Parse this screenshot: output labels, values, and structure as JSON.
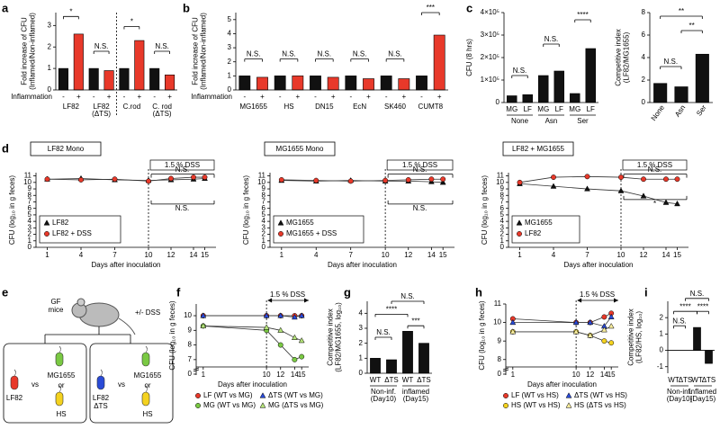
{
  "chart_data": [
    {
      "type": "bar",
      "panel": "a",
      "ylabel": [
        "Fold increase of CFU",
        "(Inflamed/Non-inflamed)"
      ],
      "categories": [
        "LF82",
        [
          "LF82",
          "(ΔTS)"
        ],
        "C.rod",
        [
          "C. rod",
          "(ΔTS)"
        ]
      ],
      "series_label": "Inflammation",
      "series": [
        {
          "name": "-",
          "color": "#111111",
          "values": [
            1.0,
            1.0,
            1.0,
            1.0
          ]
        },
        {
          "name": "+",
          "color": "#e8392a",
          "values": [
            2.6,
            0.9,
            2.3,
            0.7
          ]
        }
      ],
      "ylim": [
        0,
        3.6
      ],
      "yticks": [
        0,
        1,
        2,
        3
      ],
      "annotations": [
        "*",
        "N.S.",
        "*",
        "N.S."
      ]
    },
    {
      "type": "bar",
      "panel": "b",
      "ylabel": [
        "Fold increase of CFU",
        "(Inflamed/Non-inflamed)"
      ],
      "categories": [
        "MG1655",
        "HS",
        "DN15",
        "EcN",
        "SK460",
        "CUMT8"
      ],
      "series_label": "Inflammation",
      "series": [
        {
          "name": "-",
          "color": "#111111",
          "values": [
            1.0,
            1.0,
            1.0,
            1.0,
            1.0,
            1.0
          ]
        },
        {
          "name": "+",
          "color": "#e8392a",
          "values": [
            0.9,
            1.0,
            0.9,
            0.8,
            0.8,
            3.9
          ]
        }
      ],
      "ylim": [
        0,
        5.5
      ],
      "yticks": [
        0,
        1,
        2,
        3,
        4,
        5
      ],
      "annotations": [
        "N.S.",
        "N.S.",
        "N.S.",
        "N.S.",
        "N.S.",
        "***"
      ]
    },
    {
      "type": "bar",
      "panel": "c",
      "ylabel": [
        "CFU (8 hrs)"
      ],
      "categories": [
        "MG",
        "LF",
        "MG",
        "LF",
        "MG",
        "LF"
      ],
      "groups": [
        "None",
        "Asn",
        "Ser"
      ],
      "color": "#111111",
      "values": [
        30000,
        35000,
        120000,
        140000,
        40000,
        240000
      ],
      "ylim": [
        0,
        400000
      ],
      "yticks": [
        0,
        {
          "value": 100000,
          "label": "1×10⁵"
        },
        {
          "value": 200000,
          "label": "2×10⁵"
        },
        {
          "value": 300000,
          "label": "3×10⁵"
        },
        {
          "value": 400000,
          "label": "4×10⁵"
        }
      ],
      "annotations": [
        "N.S.",
        "N.S.",
        "****"
      ]
    },
    {
      "type": "bar",
      "ylabel": [
        "Competitive index",
        "(LF82/MG1655)"
      ],
      "categories": [
        "None",
        "Asn",
        "Ser"
      ],
      "color": "#111111",
      "values": [
        1.7,
        1.4,
        4.3
      ],
      "ylim": [
        0,
        8
      ],
      "yticks": [
        0,
        2,
        4,
        6,
        8
      ],
      "annotations": [
        "N.S.",
        "**",
        "**"
      ]
    },
    {
      "type": "line",
      "panel": "d",
      "title": "LF82 Mono",
      "dss_label": "1.5 % DSS",
      "xlabel": "Days after inoculation",
      "ylabel": [
        "CFU (log₁₀ in g feces)"
      ],
      "x": [
        1,
        4,
        7,
        10,
        12,
        14,
        15
      ],
      "xlim": [
        0,
        16
      ],
      "xticks": [
        1,
        4,
        7,
        10,
        12,
        14,
        15
      ],
      "ylim": [
        0,
        11.5
      ],
      "yticks": [
        0,
        1,
        2,
        3,
        4,
        5,
        6,
        7,
        8,
        9,
        10,
        11
      ],
      "series": [
        {
          "name": "LF82",
          "color": "#111111",
          "marker": "triangle",
          "values": [
            10.5,
            10.6,
            10.4,
            10.3,
            10.4,
            10.5,
            10.6
          ]
        },
        {
          "name": "LF82 + DSS",
          "color": "#e8392a",
          "marker": "circle",
          "values": [
            10.5,
            10.4,
            10.5,
            10.2,
            10.6,
            10.8,
            10.8
          ]
        }
      ],
      "annotations": [
        "N.S.",
        "N.S."
      ]
    },
    {
      "type": "line",
      "title": "MG1655 Mono",
      "dss_label": "1.5 % DSS",
      "xlabel": "Days after inoculation",
      "ylabel": [
        "CFU (log₁₀ in g feces)"
      ],
      "x": [
        1,
        4,
        7,
        10,
        12,
        14,
        15
      ],
      "xlim": [
        0,
        16
      ],
      "xticks": [
        1,
        4,
        7,
        10,
        12,
        14,
        15
      ],
      "ylim": [
        0,
        11.5
      ],
      "yticks": [
        0,
        1,
        2,
        3,
        4,
        5,
        6,
        7,
        8,
        9,
        10,
        11
      ],
      "series": [
        {
          "name": "MG1655",
          "color": "#111111",
          "marker": "triangle",
          "values": [
            10.3,
            10.2,
            10.3,
            10.2,
            10.2,
            10.1,
            10.0
          ]
        },
        {
          "name": "MG1655 + DSS",
          "color": "#e8392a",
          "marker": "circle",
          "values": [
            10.4,
            10.3,
            10.2,
            10.3,
            10.4,
            10.5,
            10.5
          ]
        }
      ],
      "annotations": [
        "N.S.",
        "N.S."
      ]
    },
    {
      "type": "line",
      "title": "LF82 + MG1655",
      "dss_label": "1.5 % DSS",
      "xlabel": "Days after inoculation",
      "ylabel": [
        "CFU (log₁₀ in g feces)"
      ],
      "x": [
        1,
        4,
        7,
        10,
        12,
        14,
        15
      ],
      "xlim": [
        0,
        16
      ],
      "xticks": [
        1,
        4,
        7,
        10,
        12,
        14,
        15
      ],
      "ylim": [
        0,
        11.5
      ],
      "yticks": [
        0,
        1,
        2,
        3,
        4,
        5,
        6,
        7,
        8,
        9,
        10,
        11
      ],
      "series": [
        {
          "name": "MG1655",
          "color": "#111111",
          "marker": "triangle",
          "values": [
            9.8,
            9.4,
            9.0,
            8.7,
            7.9,
            6.9,
            6.7
          ]
        },
        {
          "name": "LF82",
          "color": "#e8392a",
          "marker": "circle",
          "values": [
            10.0,
            10.8,
            10.9,
            10.8,
            10.5,
            10.5,
            10.5
          ]
        }
      ],
      "annotations": [
        "N.S.",
        "*"
      ]
    },
    {
      "type": "line",
      "panel": "f",
      "dss_label": "1.5 % DSS",
      "xlabel": "Days after inoculation",
      "ylabel": [
        "CFU (log₁₀ in g feces)"
      ],
      "x": [
        1,
        10,
        12,
        14,
        15
      ],
      "xlim": [
        0,
        16
      ],
      "xticks": [
        1,
        10,
        12,
        14,
        15
      ],
      "ylim": [
        6.5,
        10.8
      ],
      "axis_break": true,
      "yticks": [
        0,
        7,
        8,
        9,
        10
      ],
      "series": [
        {
          "name": "LF (WT vs MG)",
          "color": "#e8392a",
          "marker": "circle",
          "values": [
            10.0,
            10.0,
            10.0,
            10.0,
            10.0
          ]
        },
        {
          "name": "ΔTS (WT vs MG)",
          "color": "#2a4bd7",
          "marker": "triangle",
          "values": [
            10.0,
            10.0,
            10.0,
            9.9,
            10.0
          ]
        },
        {
          "name": "MG (WT vs MG)",
          "color": "#7ac943",
          "marker": "circle",
          "values": [
            9.3,
            9.0,
            8.0,
            7.0,
            7.2
          ]
        },
        {
          "name": "MG (ΔTS vs MG)",
          "color": "#b5e37a",
          "marker": "triangle",
          "values": [
            9.3,
            9.2,
            9.0,
            8.5,
            8.3
          ]
        }
      ],
      "annotations": []
    },
    {
      "type": "bar",
      "panel": "g",
      "ylabel": [
        "Competitive index",
        "(LF82/MG1655, log₁₀)"
      ],
      "categories": [
        "WT",
        "ΔTS",
        "WT",
        "ΔTS"
      ],
      "groups": [
        [
          "Non-inf.",
          "(Day10)"
        ],
        [
          "inflamed",
          "(Day15)"
        ]
      ],
      "color": "#111111",
      "values": [
        1.0,
        0.9,
        2.8,
        2.0
      ],
      "ylim": [
        0,
        4.8
      ],
      "yticks": [
        0,
        1,
        2,
        3,
        4
      ],
      "annotations": [
        "N.S.",
        "****",
        "***",
        "N.S."
      ]
    },
    {
      "type": "line",
      "panel": "h",
      "dss_label": "1.5 % DSS",
      "xlabel": "Days after inoculation",
      "ylabel": [
        "CFU (log₁₀ in g feces)"
      ],
      "x": [
        1,
        10,
        12,
        14,
        15
      ],
      "xlim": [
        0,
        16
      ],
      "xticks": [
        1,
        10,
        12,
        14,
        15
      ],
      "ylim": [
        7.6,
        11
      ],
      "axis_break": true,
      "yticks": [
        0,
        8,
        9,
        10,
        11
      ],
      "series": [
        {
          "name": "LF (WT vs HS)",
          "color": "#e8392a",
          "marker": "circle",
          "values": [
            10.2,
            10.0,
            10.0,
            10.3,
            10.5
          ]
        },
        {
          "name": "ΔTS (WT vs HS)",
          "color": "#2a4bd7",
          "marker": "triangle",
          "values": [
            10.0,
            10.0,
            10.0,
            9.8,
            10.3
          ]
        },
        {
          "name": "HS (WT vs HS)",
          "color": "#f4d21f",
          "marker": "circle",
          "values": [
            9.5,
            9.5,
            9.3,
            9.0,
            8.9
          ]
        },
        {
          "name": "HS (ΔTS vs HS)",
          "color": "#f7ec9c",
          "marker": "triangle",
          "values": [
            9.5,
            9.5,
            9.3,
            9.6,
            9.8
          ]
        }
      ],
      "annotations": []
    },
    {
      "type": "bar",
      "panel": "i",
      "ylabel": [
        "Competitive index",
        "(LF82/HS, log₁₀)"
      ],
      "categories": [
        "WT",
        "ΔTS",
        "WT",
        "ΔTS"
      ],
      "groups": [
        [
          "Non-inf.",
          "(Day10)"
        ],
        [
          "inflamed",
          "(Day15)"
        ]
      ],
      "color": "#111111",
      "values": [
        0.0,
        0.0,
        1.4,
        -0.8
      ],
      "ylim": [
        -1.4,
        3.0
      ],
      "yticks": [
        -1,
        0,
        1,
        2
      ],
      "annotations": [
        "N.S.",
        "****",
        "****",
        "N.S."
      ]
    }
  ],
  "diagram": {
    "panel": "e",
    "mouse_label": [
      "GF",
      "mice"
    ],
    "treatment": "+/- DSS",
    "groups": [
      {
        "strain": [
          "LF82"
        ],
        "vs": "vs",
        "partner": "MG1655",
        "or": "or",
        "alt": "HS"
      },
      {
        "strain": [
          "LF82",
          "ΔTS"
        ],
        "vs": "vs",
        "partner": "MG1655",
        "or": "or",
        "alt": "HS"
      }
    ]
  }
}
